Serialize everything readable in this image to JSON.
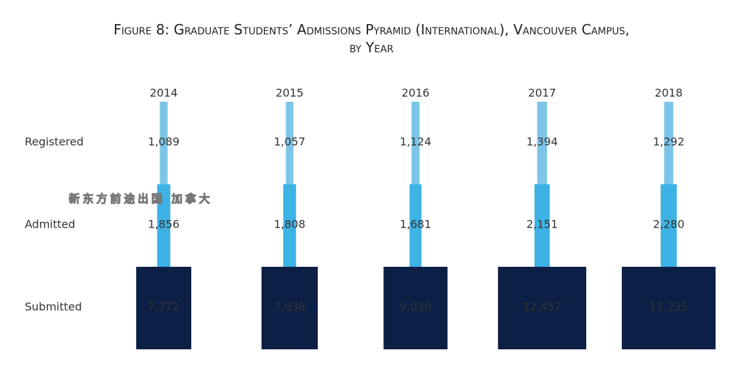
{
  "chart_data": {
    "type": "pyramid",
    "title": "Figure 8: Graduate Students’ Admissions Pyramid (International), Vancouver Campus, by Year",
    "categories": [
      "2014",
      "2015",
      "2016",
      "2017",
      "2018"
    ],
    "series": [
      {
        "name": "Registered",
        "color": "#7cc5e8",
        "values": [
          1089,
          1057,
          1124,
          1394,
          1292
        ],
        "value_labels": [
          "1,089",
          "1,057",
          "1,124",
          "1,394",
          "1,292"
        ]
      },
      {
        "name": "Admitted",
        "color": "#3db2e4",
        "values": [
          1856,
          1808,
          1681,
          2151,
          2280
        ],
        "value_labels": [
          "1,856",
          "1,808",
          "1,681",
          "2,151",
          "2,280"
        ]
      },
      {
        "name": "Submitted",
        "color": "#0c1f45",
        "values": [
          7772,
          7938,
          9030,
          12457,
          13235
        ],
        "value_labels": [
          "7,772",
          "7,938",
          "9,030",
          "12,457",
          "13,235"
        ]
      }
    ],
    "watermark": "新东方前途出国 加拿大"
  }
}
